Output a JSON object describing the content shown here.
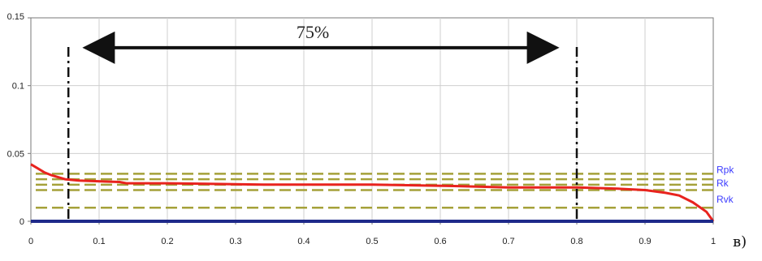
{
  "chart_data": {
    "type": "line",
    "xlim": [
      0,
      1
    ],
    "ylim": [
      0,
      0.15
    ],
    "x_ticks": [
      "0",
      "0.1",
      "0.2",
      "0.3",
      "0.4",
      "0.5",
      "0.6",
      "0.7",
      "0.8",
      "0.9",
      "1"
    ],
    "y_ticks": [
      "0",
      "0.05",
      "0.1",
      "0.15"
    ],
    "grid": true,
    "series": [
      {
        "color": "#e8231e",
        "points": [
          [
            0,
            0.042
          ],
          [
            0.01,
            0.039
          ],
          [
            0.02,
            0.036
          ],
          [
            0.03,
            0.034
          ],
          [
            0.05,
            0.031
          ],
          [
            0.07,
            0.03
          ],
          [
            0.13,
            0.029
          ],
          [
            0.14,
            0.028
          ],
          [
            0.2,
            0.028
          ],
          [
            0.34,
            0.027
          ],
          [
            0.36,
            0.027
          ],
          [
            0.5,
            0.027
          ],
          [
            0.62,
            0.026
          ],
          [
            0.7,
            0.025
          ],
          [
            0.8,
            0.025
          ],
          [
            0.86,
            0.024
          ],
          [
            0.9,
            0.023
          ],
          [
            0.93,
            0.021
          ],
          [
            0.95,
            0.019
          ],
          [
            0.97,
            0.014
          ],
          [
            0.99,
            0.007
          ],
          [
            1,
            0
          ]
        ]
      },
      {
        "color": "#1f2a8a",
        "points": [
          [
            0,
            0
          ],
          [
            1,
            0
          ]
        ]
      }
    ],
    "reference_lines": [
      {
        "y": 0.035,
        "color": "#a5a13a"
      },
      {
        "y": 0.031,
        "color": "#a5a13a"
      },
      {
        "y": 0.027,
        "color": "#a5a13a"
      },
      {
        "y": 0.023,
        "color": "#a5a13a"
      },
      {
        "y": 0.01,
        "color": "#a5a13a"
      }
    ],
    "vertical_markers": [
      0.055,
      0.8
    ],
    "annotations": {
      "span_text": "75%",
      "span_from": 0.085,
      "span_to": 0.765,
      "span_y": 0.128
    },
    "right_labels": [
      {
        "text": "Rpk",
        "color": "#3c3cff"
      },
      {
        "text": "Rk",
        "color": "#3c3cff"
      },
      {
        "text": "Rvk",
        "color": "#3c3cff"
      }
    ],
    "panel_label": "в)"
  }
}
